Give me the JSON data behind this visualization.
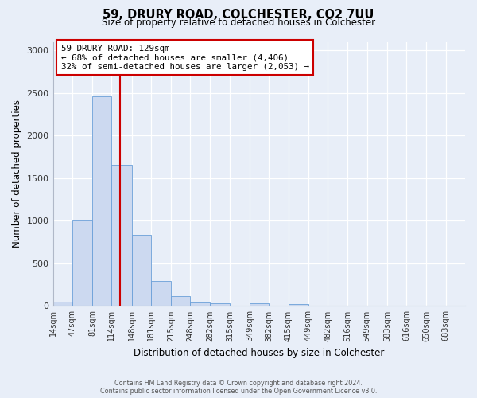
{
  "title": "59, DRURY ROAD, COLCHESTER, CO2 7UU",
  "subtitle": "Size of property relative to detached houses in Colchester",
  "xlabel": "Distribution of detached houses by size in Colchester",
  "ylabel": "Number of detached properties",
  "bin_labels": [
    "14sqm",
    "47sqm",
    "81sqm",
    "114sqm",
    "148sqm",
    "181sqm",
    "215sqm",
    "248sqm",
    "282sqm",
    "315sqm",
    "349sqm",
    "382sqm",
    "415sqm",
    "449sqm",
    "482sqm",
    "516sqm",
    "549sqm",
    "583sqm",
    "616sqm",
    "650sqm",
    "683sqm"
  ],
  "bar_values": [
    55,
    1000,
    2460,
    1660,
    835,
    295,
    120,
    45,
    35,
    0,
    35,
    0,
    20,
    0,
    0,
    0,
    0,
    0,
    0,
    0,
    0
  ],
  "bar_color": "#ccd9f0",
  "bar_edge_color": "#6a9fd8",
  "property_line_x": 129,
  "bin_edges": [
    14,
    47,
    81,
    114,
    148,
    181,
    215,
    248,
    282,
    315,
    349,
    382,
    415,
    449,
    482,
    516,
    549,
    583,
    616,
    650,
    683,
    716
  ],
  "annotation_title": "59 DRURY ROAD: 129sqm",
  "annotation_line1": "← 68% of detached houses are smaller (4,406)",
  "annotation_line2": "32% of semi-detached houses are larger (2,053) →",
  "annotation_box_color": "#ffffff",
  "annotation_box_edge": "#cc0000",
  "vline_color": "#cc0000",
  "ylim": [
    0,
    3100
  ],
  "yticks": [
    0,
    500,
    1000,
    1500,
    2000,
    2500,
    3000
  ],
  "background_color": "#e8eef8",
  "footer_line1": "Contains HM Land Registry data © Crown copyright and database right 2024.",
  "footer_line2": "Contains public sector information licensed under the Open Government Licence v3.0."
}
